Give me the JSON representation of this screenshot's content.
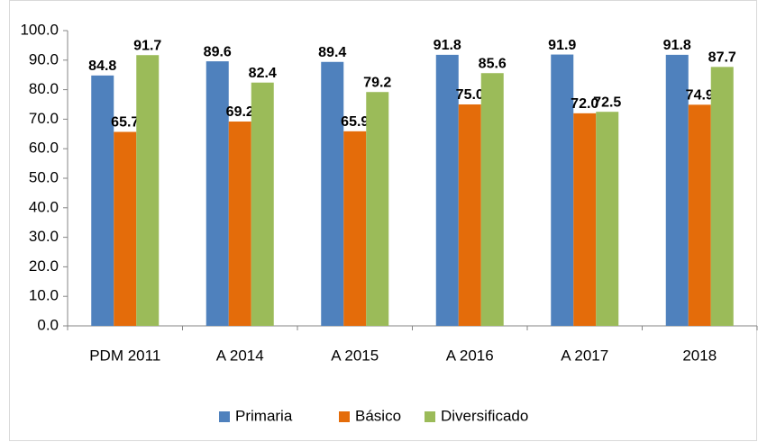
{
  "chart_data": {
    "type": "bar",
    "categories": [
      "PDM 2011",
      "A 2014",
      "A 2015",
      "A 2016",
      "A 2017",
      "2018"
    ],
    "series": [
      {
        "name": "Primaria",
        "color": "#4f81bd",
        "values": [
          84.8,
          89.6,
          89.4,
          91.8,
          91.9,
          91.8
        ],
        "value_labels": [
          "84.8",
          "89.6",
          "89.4",
          "91.8",
          "91.9",
          "91.8"
        ]
      },
      {
        "name": "Básico",
        "color": "#e46c0a",
        "values": [
          65.7,
          69.2,
          65.9,
          75.0,
          72.0,
          74.9
        ],
        "value_labels": [
          "65.7",
          "69.2",
          "65.9",
          "75.0",
          "72.0",
          "74.9"
        ]
      },
      {
        "name": "Diversificado",
        "color": "#9bbb59",
        "values": [
          91.7,
          82.4,
          79.2,
          85.6,
          72.5,
          87.7
        ],
        "value_labels": [
          "91.7",
          "82.4",
          "79.2",
          "85.6",
          "72.5",
          "87.7"
        ]
      }
    ],
    "ylim": [
      0,
      100
    ],
    "yticks": [
      {
        "value": 0,
        "label": "0.0"
      },
      {
        "value": 10,
        "label": "10.0"
      },
      {
        "value": 20,
        "label": "20.0"
      },
      {
        "value": 30,
        "label": "30.0"
      },
      {
        "value": 40,
        "label": "40.0"
      },
      {
        "value": 50,
        "label": "50.0"
      },
      {
        "value": 60,
        "label": "60.0"
      },
      {
        "value": 70,
        "label": "70.0"
      },
      {
        "value": 80,
        "label": "80.0"
      },
      {
        "value": 90,
        "label": "90.0"
      },
      {
        "value": 100,
        "label": "100.0"
      }
    ],
    "grid": false,
    "legend": "bottom"
  }
}
